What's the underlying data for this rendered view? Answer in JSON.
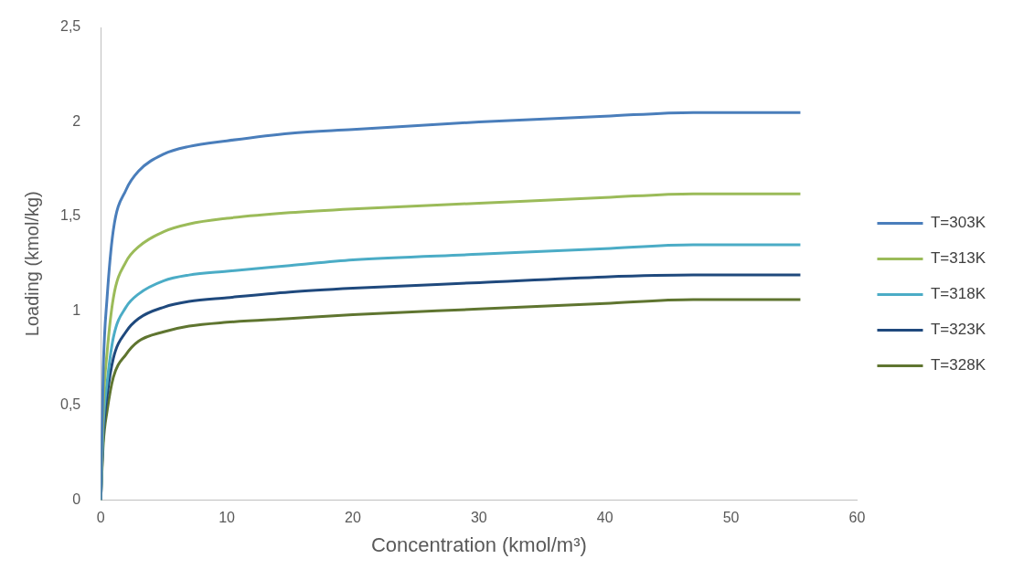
{
  "chart_data": {
    "type": "line",
    "xlabel": "Concentration (kmol/m³)",
    "ylabel": "Loading (kmol/kg)",
    "x": [
      0,
      0.2,
      0.5,
      1,
      2,
      3,
      5,
      7,
      10,
      15,
      20,
      30,
      40,
      47,
      55.5
    ],
    "series": [
      {
        "name": "T=303K",
        "color": "#4a7ebb",
        "values": [
          0,
          0.7,
          1.07,
          1.43,
          1.64,
          1.74,
          1.83,
          1.87,
          1.9,
          1.94,
          1.96,
          2.0,
          2.03,
          2.05,
          2.05
        ]
      },
      {
        "name": "T=313K",
        "color": "#9bbb59",
        "values": [
          0,
          0.5,
          0.78,
          1.07,
          1.26,
          1.34,
          1.42,
          1.46,
          1.49,
          1.52,
          1.54,
          1.57,
          1.6,
          1.62,
          1.62
        ]
      },
      {
        "name": "T=318K",
        "color": "#4bacc6",
        "values": [
          0,
          0.4,
          0.62,
          0.86,
          1.02,
          1.09,
          1.16,
          1.19,
          1.21,
          1.24,
          1.27,
          1.3,
          1.33,
          1.35,
          1.35
        ]
      },
      {
        "name": "T=323K",
        "color": "#1f497d",
        "values": [
          0,
          0.35,
          0.55,
          0.75,
          0.89,
          0.96,
          1.02,
          1.05,
          1.07,
          1.1,
          1.12,
          1.15,
          1.18,
          1.19,
          1.19
        ]
      },
      {
        "name": "T=328K",
        "color": "#5f7530",
        "values": [
          0,
          0.3,
          0.47,
          0.65,
          0.77,
          0.84,
          0.89,
          0.92,
          0.94,
          0.96,
          0.98,
          1.01,
          1.04,
          1.06,
          1.06
        ]
      }
    ],
    "xlim": [
      0,
      60
    ],
    "xticks": [
      0,
      10,
      20,
      30,
      40,
      50,
      60
    ],
    "ylim": [
      0,
      2.5
    ],
    "yticks": [
      0,
      {
        "value": 0.5,
        "label": "0,5"
      },
      1,
      {
        "value": 1.5,
        "label": "1,5"
      },
      2,
      {
        "value": 2.5,
        "label": "2,5"
      }
    ],
    "grid": false,
    "legend": "right",
    "marker": "none",
    "line_style": "solid"
  }
}
